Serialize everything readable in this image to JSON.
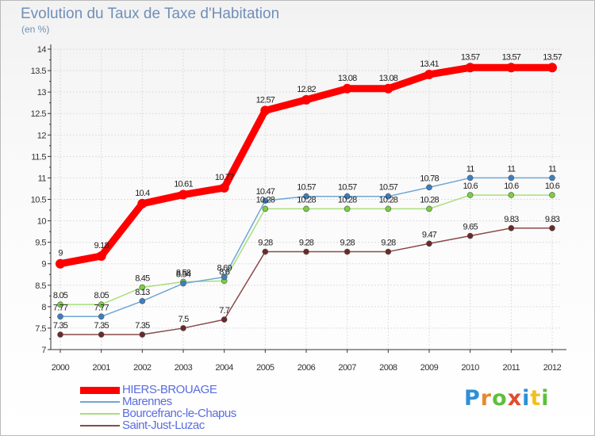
{
  "title": "Evolution du Taux de Taxe d'Habitation",
  "unit_label": "(en %)",
  "brand": {
    "text": "Proxiti",
    "letter_colors": [
      "#2f8fd6",
      "#e8892c",
      "#5fbf3c",
      "#e34b2e",
      "#2f8fd6",
      "#f0c020",
      "#5fbf3c"
    ]
  },
  "chart_data": {
    "type": "line",
    "title": "Evolution du Taux de Taxe d'Habitation",
    "ylabel": "(en %)",
    "xlabel": "",
    "x": [
      "2000",
      "2001",
      "2002",
      "2003",
      "2004",
      "2005",
      "2006",
      "2007",
      "2008",
      "2009",
      "2010",
      "2011",
      "2012"
    ],
    "ylim": [
      7,
      14
    ],
    "yticks": [
      "7",
      "7.5",
      "8",
      "8.5",
      "9",
      "9.5",
      "10",
      "10.5",
      "11",
      "11.5",
      "12",
      "12.5",
      "13",
      "13.5",
      "14"
    ],
    "grid": true,
    "legend_position": "bottom-left",
    "series": [
      {
        "name": "HIERS-BROUAGE",
        "color": "#ff0000",
        "marker_color": "#ff0000",
        "values": [
          9,
          9.18,
          10.4,
          10.61,
          10.77,
          12.57,
          12.82,
          13.08,
          13.08,
          13.41,
          13.57,
          13.57,
          13.57
        ],
        "labels": [
          "9",
          "9.18",
          "10.4",
          "10.61",
          "10.77",
          "12.57",
          "12.82",
          "13.08",
          "13.08",
          "13.41",
          "13.57",
          "13.57",
          "13.57"
        ]
      },
      {
        "name": "Marennes",
        "color": "#6fa6d6",
        "marker_color": "#3c7fc0",
        "values": [
          7.77,
          7.77,
          8.13,
          8.54,
          8.69,
          10.47,
          10.57,
          10.57,
          10.57,
          10.78,
          11,
          11,
          11
        ],
        "labels": [
          "7.77",
          "7.77",
          "8.13",
          "8.54",
          "8.69",
          "10.47",
          "10.57",
          "10.57",
          "10.57",
          "10.78",
          "11",
          "11",
          "11"
        ]
      },
      {
        "name": "Bourcefranc-le-Chapus",
        "color": "#a8df7a",
        "marker_color": "#7acf3f",
        "values": [
          8.05,
          8.05,
          8.45,
          8.58,
          8.6,
          10.28,
          10.28,
          10.28,
          10.28,
          10.28,
          10.6,
          10.6,
          10.6
        ],
        "labels": [
          "8.05",
          "8.05",
          "8.45",
          "8.58",
          "8.6",
          "10.28",
          "10.28",
          "10.28",
          "10.28",
          "10.28",
          "10.6",
          "10.6",
          "10.6"
        ]
      },
      {
        "name": "Saint-Just-Luzac",
        "color": "#8a4a4a",
        "marker_color": "#6a2a2a",
        "values": [
          7.35,
          7.35,
          7.35,
          7.5,
          7.7,
          9.28,
          9.28,
          9.28,
          9.28,
          9.47,
          9.65,
          9.83,
          9.83
        ],
        "labels": [
          "7.35",
          "7.35",
          "7.35",
          "7.5",
          "7.7",
          "9.28",
          "9.28",
          "9.28",
          "9.28",
          "9.47",
          "9.65",
          "9.83",
          "9.83"
        ]
      }
    ]
  }
}
